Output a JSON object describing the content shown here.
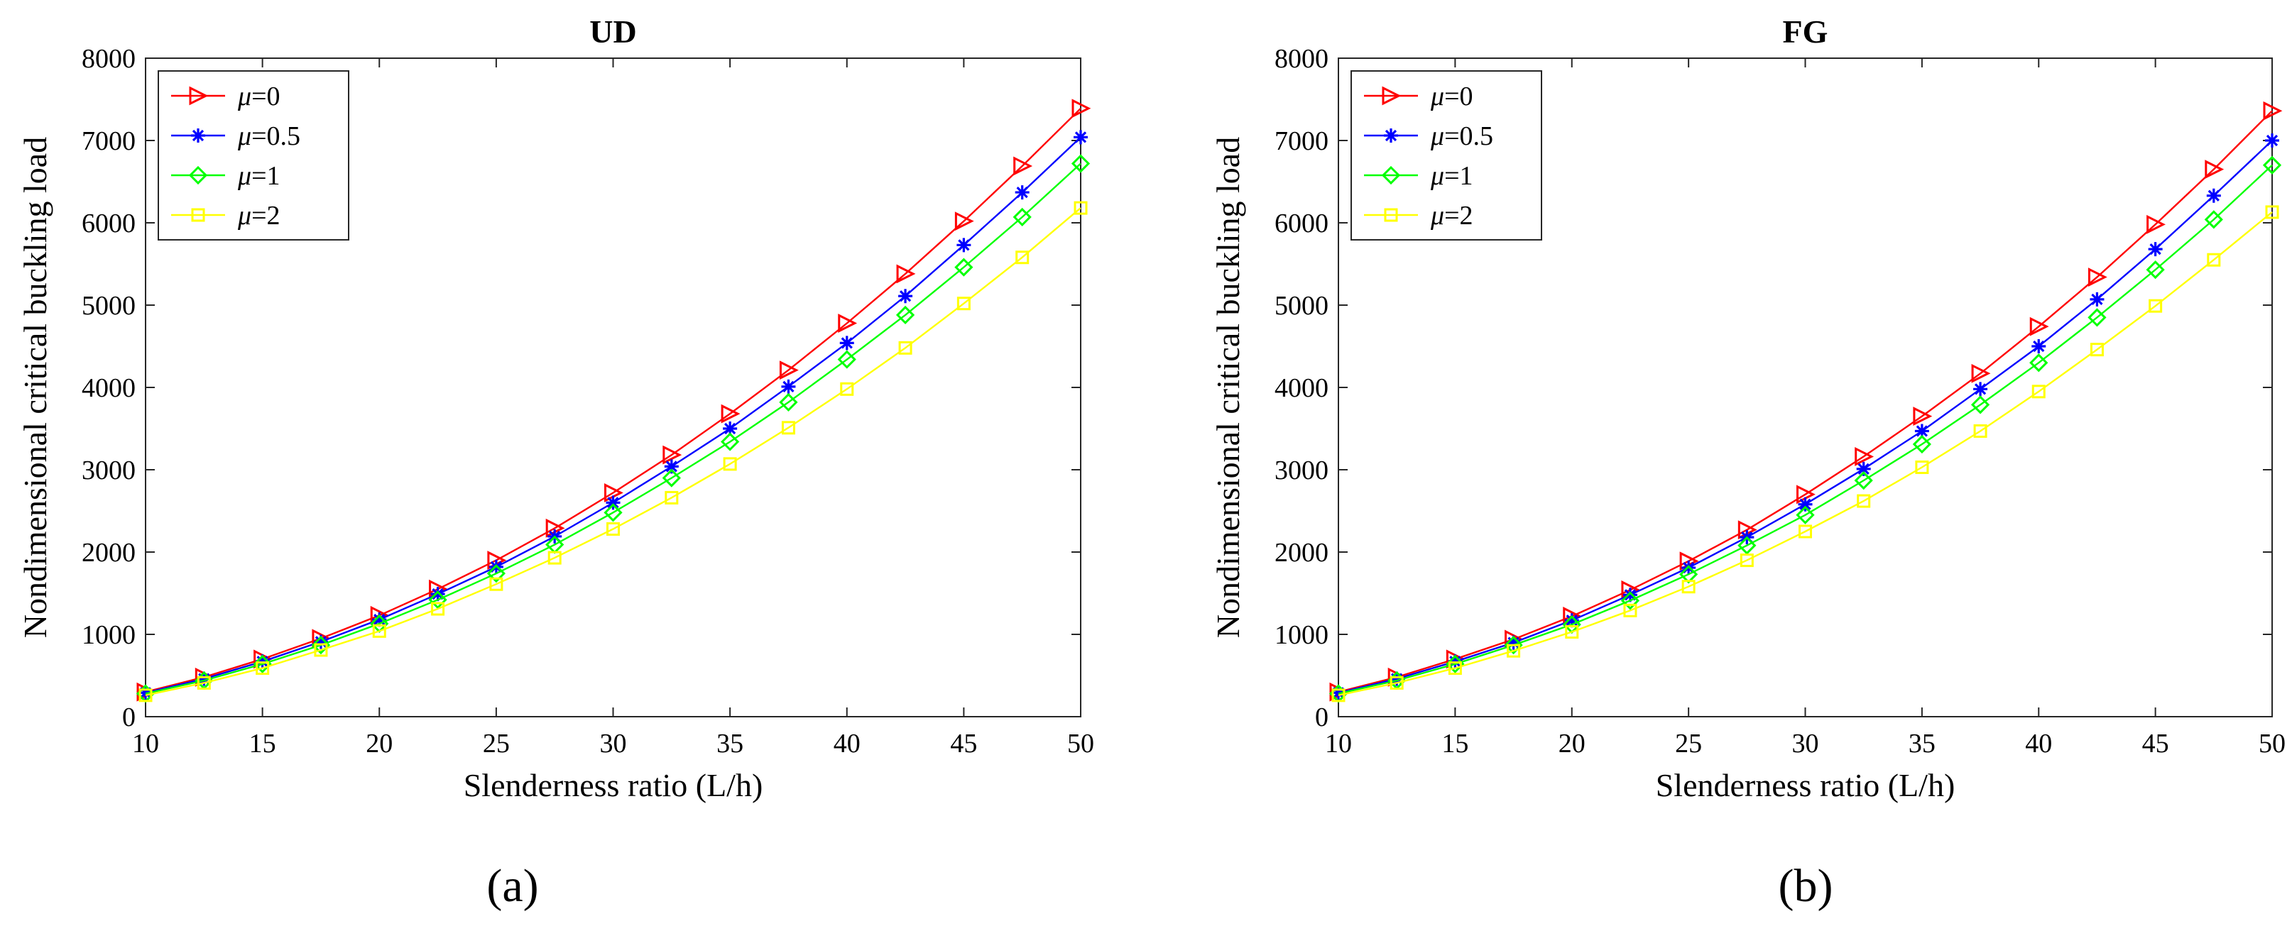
{
  "chart_data": [
    {
      "type": "line",
      "title": "UD",
      "xlabel": "Slenderness ratio (L/h)",
      "ylabel": "Nondimensional critical buckling load",
      "xlim": [
        10,
        50
      ],
      "ylim": [
        0,
        8000
      ],
      "xticks": [
        10,
        15,
        20,
        25,
        30,
        35,
        40,
        45,
        50
      ],
      "yticks": [
        0,
        1000,
        2000,
        3000,
        4000,
        5000,
        6000,
        7000,
        8000
      ],
      "grid": false,
      "legend_position": "top-left",
      "panel_label": "(a)",
      "x": [
        10,
        12.5,
        15,
        17.5,
        20,
        22.5,
        25,
        27.5,
        30,
        32.5,
        35,
        37.5,
        40,
        42.5,
        45,
        47.5,
        50
      ],
      "series": [
        {
          "name": "μ=0",
          "legend_symbol": "μ",
          "legend_value": "=0",
          "color": "#ff0000",
          "marker": "triangle-right",
          "values": [
            300,
            480,
            700,
            950,
            1230,
            1550,
            1900,
            2290,
            2720,
            3180,
            3680,
            4210,
            4780,
            5380,
            6020,
            6690,
            7390
          ]
        },
        {
          "name": "μ=0.5",
          "legend_symbol": "μ",
          "legend_value": "=0.5",
          "color": "#0000ff",
          "marker": "asterisk",
          "values": [
            290,
            460,
            670,
            910,
            1180,
            1490,
            1820,
            2190,
            2600,
            3040,
            3500,
            4010,
            4540,
            5110,
            5730,
            6370,
            7040
          ]
        },
        {
          "name": "μ=1",
          "legend_symbol": "μ",
          "legend_value": "=1",
          "color": "#00ff00",
          "marker": "diamond",
          "values": [
            280,
            440,
            640,
            870,
            1130,
            1420,
            1740,
            2090,
            2480,
            2900,
            3340,
            3820,
            4340,
            4880,
            5460,
            6070,
            6720
          ]
        },
        {
          "name": "μ=2",
          "legend_symbol": "μ",
          "legend_value": "=2",
          "color": "#ffff00",
          "marker": "square",
          "values": [
            260,
            410,
            590,
            810,
            1040,
            1310,
            1610,
            1930,
            2280,
            2660,
            3070,
            3510,
            3980,
            4480,
            5020,
            5580,
            6180
          ]
        }
      ]
    },
    {
      "type": "line",
      "title": "FG",
      "xlabel": "Slenderness ratio (L/h)",
      "ylabel": "Nondimensional critical buckling load",
      "xlim": [
        10,
        50
      ],
      "ylim": [
        0,
        8000
      ],
      "xticks": [
        10,
        15,
        20,
        25,
        30,
        35,
        40,
        45,
        50
      ],
      "yticks": [
        0,
        1000,
        2000,
        3000,
        4000,
        5000,
        6000,
        7000,
        8000
      ],
      "grid": false,
      "legend_position": "top-left",
      "panel_label": "(b)",
      "x": [
        10,
        12.5,
        15,
        17.5,
        20,
        22.5,
        25,
        27.5,
        30,
        32.5,
        35,
        37.5,
        40,
        42.5,
        45,
        47.5,
        50
      ],
      "series": [
        {
          "name": "μ=0",
          "legend_symbol": "μ",
          "legend_value": "=0",
          "color": "#ff0000",
          "marker": "triangle-right",
          "values": [
            300,
            480,
            700,
            940,
            1220,
            1540,
            1890,
            2270,
            2700,
            3160,
            3650,
            4170,
            4740,
            5340,
            5980,
            6650,
            7360
          ]
        },
        {
          "name": "μ=0.5",
          "legend_symbol": "μ",
          "legend_value": "=0.5",
          "color": "#0000ff",
          "marker": "asterisk",
          "values": [
            290,
            460,
            670,
            900,
            1170,
            1480,
            1810,
            2180,
            2580,
            3010,
            3470,
            3980,
            4500,
            5070,
            5680,
            6330,
            7000
          ]
        },
        {
          "name": "μ=1",
          "legend_symbol": "μ",
          "legend_value": "=1",
          "color": "#00ff00",
          "marker": "diamond",
          "values": [
            280,
            440,
            640,
            870,
            1120,
            1410,
            1730,
            2080,
            2450,
            2870,
            3310,
            3790,
            4300,
            4850,
            5430,
            6040,
            6700
          ]
        },
        {
          "name": "μ=2",
          "legend_symbol": "μ",
          "legend_value": "=2",
          "color": "#ffff00",
          "marker": "square",
          "values": [
            260,
            410,
            590,
            800,
            1030,
            1290,
            1580,
            1900,
            2250,
            2620,
            3030,
            3470,
            3950,
            4460,
            4990,
            5550,
            6130
          ]
        }
      ]
    }
  ]
}
